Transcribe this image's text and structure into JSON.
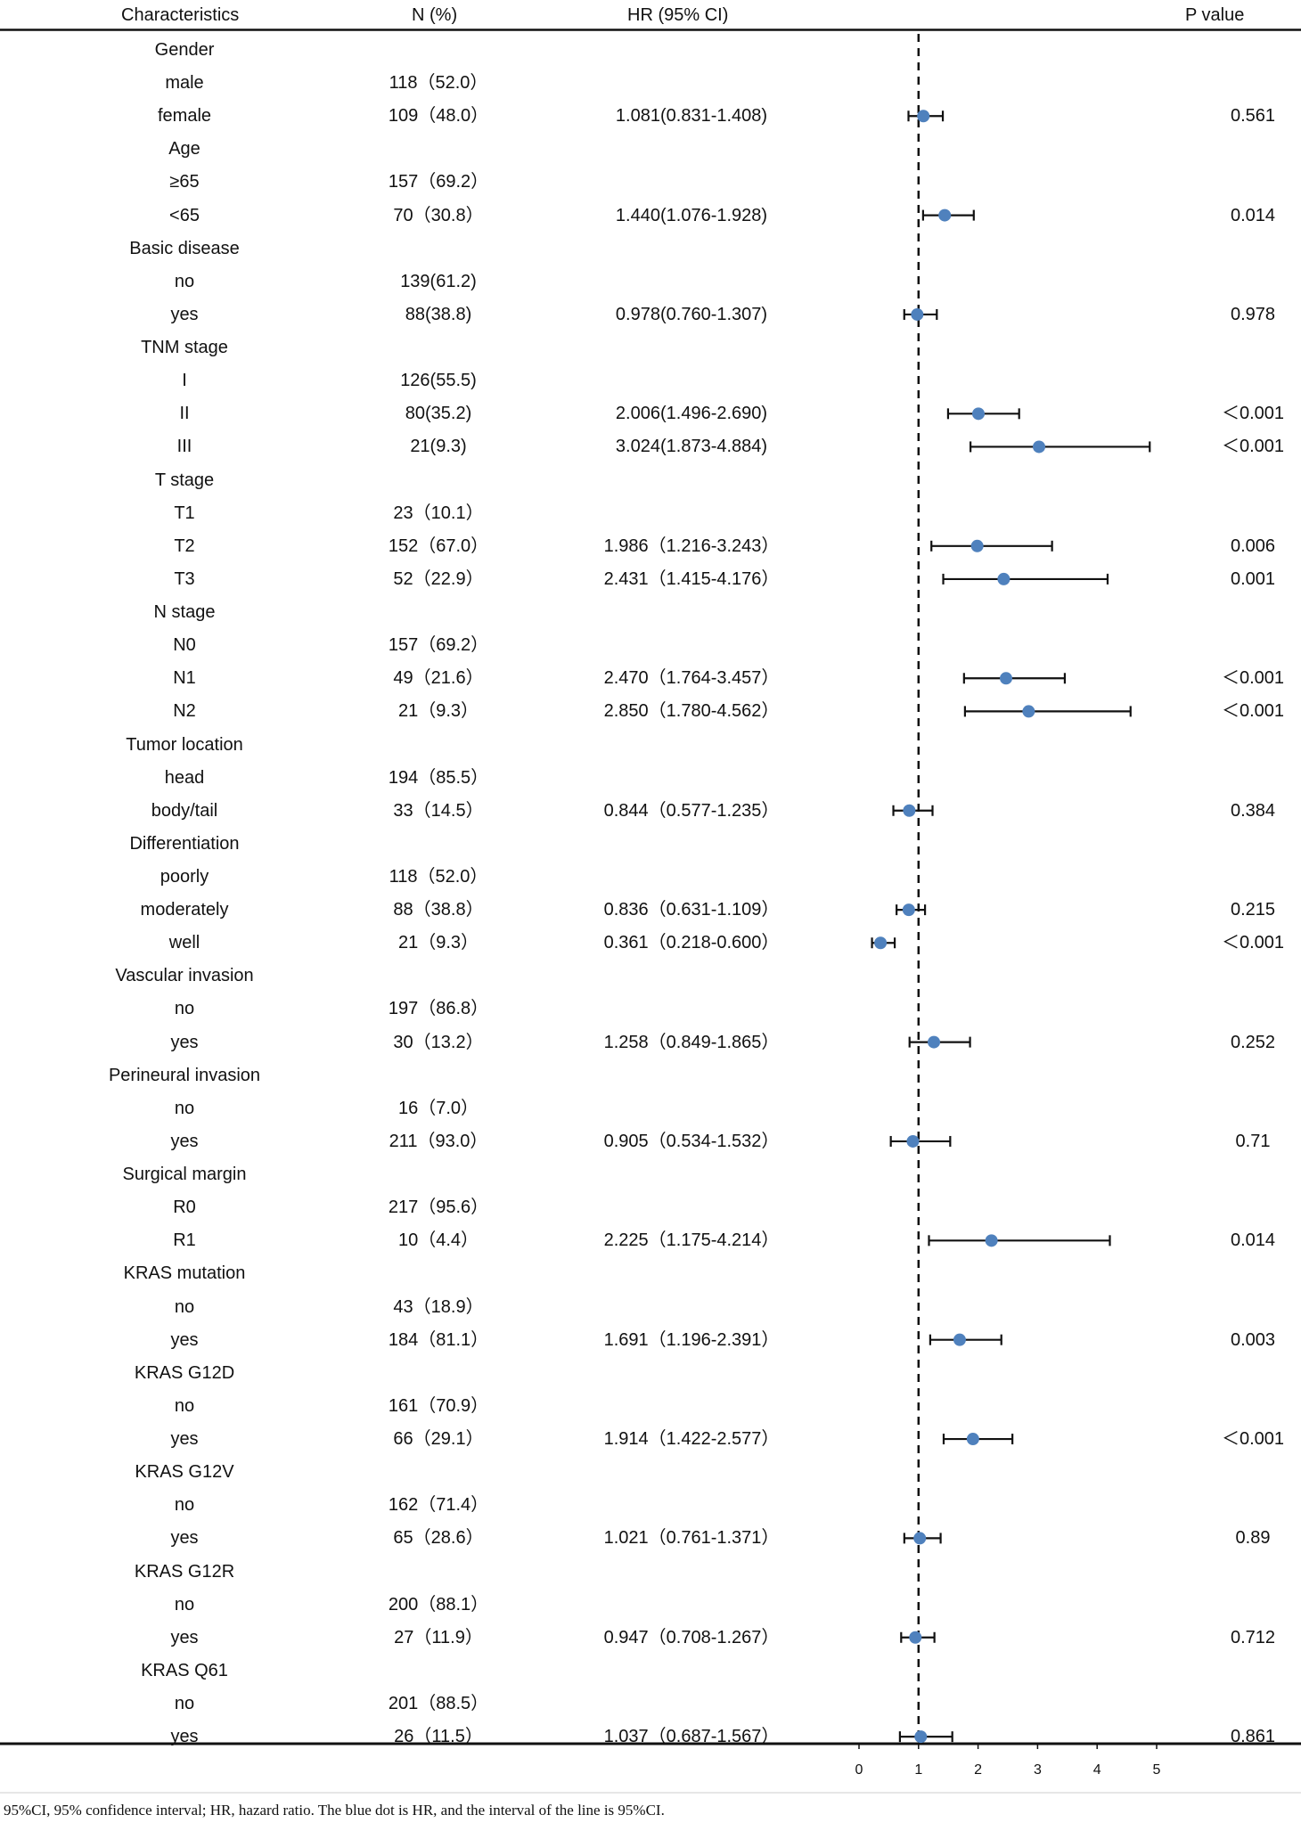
{
  "header": {
    "characteristics": "Characteristics",
    "n_pct": "N (%)",
    "hr_ci": "HR (95% CI)",
    "p_value": "P value"
  },
  "caption": "95%CI, 95% confidence interval; HR, hazard ratio. The blue dot is HR, and the interval of the line is 95%CI.",
  "chart_data": {
    "type": "forest",
    "title": "",
    "xlabel": "",
    "x_ticks": [
      0,
      1,
      2,
      3,
      4,
      5
    ],
    "xlim": [
      0,
      5
    ],
    "reference_line": 1,
    "colors": {
      "point": "#4F81BD",
      "line": "#111111"
    },
    "rows": [
      {
        "label": "Gender",
        "header": true
      },
      {
        "label": "male",
        "n": "118（52.0）"
      },
      {
        "label": "female",
        "n": "109（48.0）",
        "hr_text": "1.081(0.831-1.408)",
        "p": "0.561",
        "hr": 1.081,
        "lo": 0.831,
        "hi": 1.408
      },
      {
        "label": "Age",
        "header": true
      },
      {
        "label": "≥65",
        "n": "157（69.2）"
      },
      {
        "label": "<65",
        "n": "70（30.8）",
        "hr_text": "1.440(1.076-1.928)",
        "p": "0.014",
        "hr": 1.44,
        "lo": 1.076,
        "hi": 1.928
      },
      {
        "label": "Basic disease",
        "header": true
      },
      {
        "label": "no",
        "n": "139(61.2)"
      },
      {
        "label": "yes",
        "n": "88(38.8)",
        "hr_text": "0.978(0.760-1.307)",
        "p": "0.978",
        "hr": 0.978,
        "lo": 0.76,
        "hi": 1.307
      },
      {
        "label": "TNM stage",
        "header": true
      },
      {
        "label": "I",
        "n": "126(55.5)"
      },
      {
        "label": "II",
        "n": "80(35.2)",
        "hr_text": "2.006(1.496-2.690)",
        "p": "＜0.001",
        "hr": 2.006,
        "lo": 1.496,
        "hi": 2.69
      },
      {
        "label": "III",
        "n": "21(9.3)",
        "hr_text": "3.024(1.873-4.884)",
        "p": "＜0.001",
        "hr": 3.024,
        "lo": 1.873,
        "hi": 4.884
      },
      {
        "label": "T stage",
        "header": true
      },
      {
        "label": "T1",
        "n": "23（10.1）"
      },
      {
        "label": "T2",
        "n": "152（67.0）",
        "hr_text": "1.986（1.216-3.243）",
        "p": "0.006",
        "hr": 1.986,
        "lo": 1.216,
        "hi": 3.243
      },
      {
        "label": "T3",
        "n": "52（22.9）",
        "hr_text": "2.431（1.415-4.176）",
        "p": "0.001",
        "hr": 2.431,
        "lo": 1.415,
        "hi": 4.176
      },
      {
        "label": "N stage",
        "header": true
      },
      {
        "label": "N0",
        "n": "157（69.2）"
      },
      {
        "label": "N1",
        "n": "49（21.6）",
        "hr_text": "2.470（1.764-3.457）",
        "p": "＜0.001",
        "hr": 2.47,
        "lo": 1.764,
        "hi": 3.457
      },
      {
        "label": "N2",
        "n": "21（9.3）",
        "hr_text": "2.850（1.780-4.562）",
        "p": "＜0.001",
        "hr": 2.85,
        "lo": 1.78,
        "hi": 4.562
      },
      {
        "label": "Tumor location",
        "header": true
      },
      {
        "label": "head",
        "n": "194（85.5）"
      },
      {
        "label": "body/tail",
        "n": "33（14.5）",
        "hr_text": "0.844（0.577-1.235）",
        "p": "0.384",
        "hr": 0.844,
        "lo": 0.577,
        "hi": 1.235
      },
      {
        "label": "Differentiation",
        "header": true
      },
      {
        "label": "poorly",
        "n": "118（52.0）"
      },
      {
        "label": "moderately",
        "n": "88（38.8）",
        "hr_text": "0.836（0.631-1.109）",
        "p": "0.215",
        "hr": 0.836,
        "lo": 0.631,
        "hi": 1.109
      },
      {
        "label": "well",
        "n": "21（9.3）",
        "hr_text": "0.361（0.218-0.600）",
        "p": "＜0.001",
        "hr": 0.361,
        "lo": 0.218,
        "hi": 0.6
      },
      {
        "label": "Vascular invasion",
        "header": true
      },
      {
        "label": "no",
        "n": "197（86.8）"
      },
      {
        "label": "yes",
        "n": "30（13.2）",
        "hr_text": "1.258（0.849-1.865）",
        "p": "0.252",
        "hr": 1.258,
        "lo": 0.849,
        "hi": 1.865
      },
      {
        "label": "Perineural invasion",
        "header": true
      },
      {
        "label": "no",
        "n": "16（7.0）"
      },
      {
        "label": "yes",
        "n": "211（93.0）",
        "hr_text": "0.905（0.534-1.532）",
        "p": "0.71",
        "hr": 0.905,
        "lo": 0.534,
        "hi": 1.532
      },
      {
        "label": "Surgical margin",
        "header": true
      },
      {
        "label": "R0",
        "n": "217（95.6）"
      },
      {
        "label": "R1",
        "n": "10（4.4）",
        "hr_text": "2.225（1.175-4.214）",
        "p": "0.014",
        "hr": 2.225,
        "lo": 1.175,
        "hi": 4.214
      },
      {
        "label": "KRAS mutation",
        "header": true
      },
      {
        "label": "no",
        "n": "43（18.9）"
      },
      {
        "label": "yes",
        "n": "184（81.1）",
        "hr_text": "1.691（1.196-2.391）",
        "p": "0.003",
        "hr": 1.691,
        "lo": 1.196,
        "hi": 2.391
      },
      {
        "label": "KRAS G12D",
        "header": true
      },
      {
        "label": "no",
        "n": "161（70.9）"
      },
      {
        "label": "yes",
        "n": "66（29.1）",
        "hr_text": "1.914（1.422-2.577）",
        "p": "＜0.001",
        "hr": 1.914,
        "lo": 1.422,
        "hi": 2.577
      },
      {
        "label": "KRAS G12V",
        "header": true
      },
      {
        "label": "no",
        "n": "162（71.4）"
      },
      {
        "label": "yes",
        "n": "65（28.6）",
        "hr_text": "1.021（0.761-1.371）",
        "p": "0.89",
        "hr": 1.021,
        "lo": 0.761,
        "hi": 1.371
      },
      {
        "label": "KRAS G12R",
        "header": true
      },
      {
        "label": "no",
        "n": "200（88.1）"
      },
      {
        "label": "yes",
        "n": "27（11.9）",
        "hr_text": "0.947（0.708-1.267）",
        "p": "0.712",
        "hr": 0.947,
        "lo": 0.708,
        "hi": 1.267
      },
      {
        "label": "KRAS Q61",
        "header": true
      },
      {
        "label": "no",
        "n": "201（88.5）"
      },
      {
        "label": "yes",
        "n": "26（11.5）",
        "hr_text": "1.037（0.687-1.567）",
        "p": "0.861",
        "hr": 1.037,
        "lo": 0.687,
        "hi": 1.567
      }
    ]
  }
}
